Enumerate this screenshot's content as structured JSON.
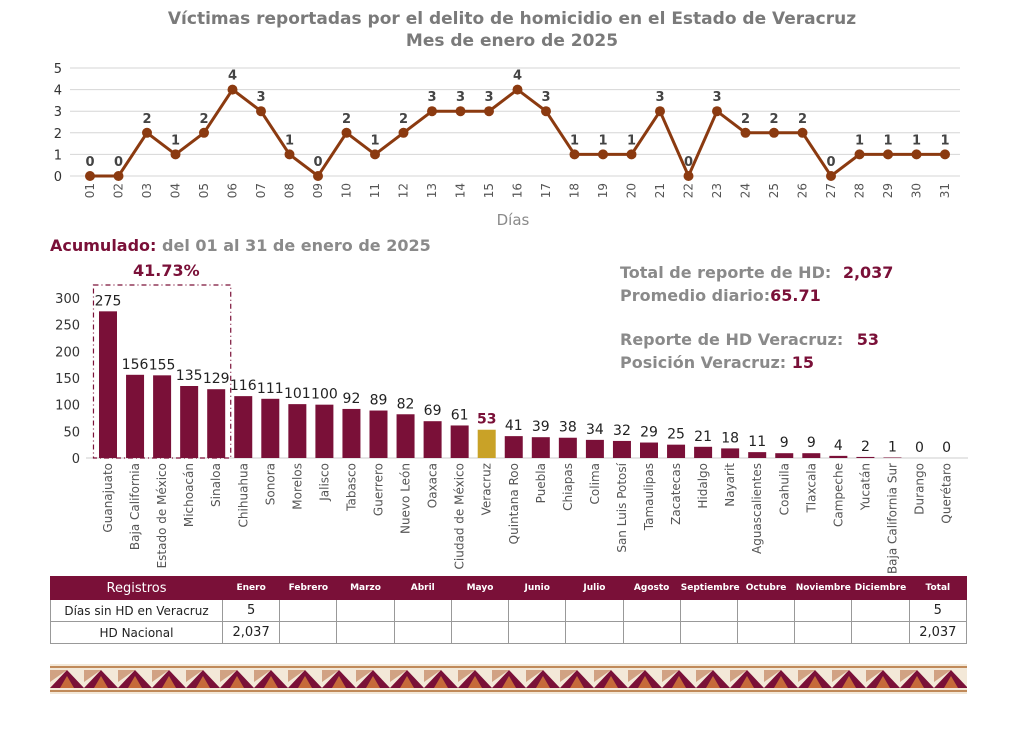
{
  "title": {
    "line1": "Víctimas reportadas por el delito de homicidio en el Estado de Veracruz",
    "line2": "Mes de enero de 2025"
  },
  "accumulated": {
    "label": "Acumulado:",
    "range": "del 01 al 31 de enero de 2025",
    "top5_pct": "41.73%"
  },
  "stats": {
    "total_label": "Total de reporte de HD:",
    "total_value": "2,037",
    "avg_label": "Promedio diario:",
    "avg_value": "65.71",
    "ver_label": "Reporte de HD Veracruz:",
    "ver_value": "53",
    "pos_label": "Posición Veracruz:",
    "pos_value": "15"
  },
  "colors": {
    "line": "#8b3a10",
    "bar": "#7a1038",
    "highlight_bar": "#c9a227",
    "highlight_label": "#7a1038",
    "grid": "#d6d6d6",
    "box": "#7a1038"
  },
  "chart_data": [
    {
      "type": "line",
      "xlabel": "Días",
      "ylim": [
        0,
        5
      ],
      "yticks": [
        0,
        1,
        2,
        3,
        4,
        5
      ],
      "x": [
        "01",
        "02",
        "03",
        "04",
        "05",
        "06",
        "07",
        "08",
        "09",
        "10",
        "11",
        "12",
        "13",
        "14",
        "15",
        "16",
        "17",
        "18",
        "19",
        "20",
        "21",
        "22",
        "23",
        "24",
        "25",
        "26",
        "27",
        "28",
        "29",
        "30",
        "31"
      ],
      "values": [
        0,
        0,
        2,
        1,
        2,
        4,
        3,
        1,
        0,
        2,
        1,
        2,
        3,
        3,
        3,
        4,
        3,
        1,
        1,
        1,
        3,
        0,
        3,
        2,
        2,
        2,
        0,
        1,
        1,
        1,
        1
      ],
      "grid": true
    },
    {
      "type": "bar",
      "ylim": [
        0,
        300
      ],
      "yticks": [
        0,
        50,
        100,
        150,
        200,
        250,
        300
      ],
      "categories": [
        "Guanajuato",
        "Baja California",
        "Estado de México",
        "Michoacán",
        "Sinaloa",
        "Chihuahua",
        "Sonora",
        "Morelos",
        "Jalisco",
        "Tabasco",
        "Guerrero",
        "Nuevo León",
        "Oaxaca",
        "Ciudad de México",
        "Veracruz",
        "Quintana Roo",
        "Puebla",
        "Chiapas",
        "Colima",
        "San Luis Potosí",
        "Tamaulipas",
        "Zacatecas",
        "Hidalgo",
        "Nayarit",
        "Aguascalientes",
        "Coahuila",
        "Tlaxcala",
        "Campeche",
        "Yucatán",
        "Baja California Sur",
        "Durango",
        "Querétaro"
      ],
      "values": [
        275,
        156,
        155,
        135,
        129,
        116,
        111,
        101,
        100,
        92,
        89,
        82,
        69,
        61,
        53,
        41,
        39,
        38,
        34,
        32,
        29,
        25,
        21,
        18,
        11,
        9,
        9,
        4,
        2,
        1,
        0,
        0
      ],
      "highlight": "Veracruz",
      "boxed_top": 5
    }
  ],
  "table": {
    "headers": [
      "Registros",
      "Enero",
      "Febrero",
      "Marzo",
      "Abril",
      "Mayo",
      "Junio",
      "Julio",
      "Agosto",
      "Septiembre",
      "Octubre",
      "Noviembre",
      "Diciembre",
      "Total"
    ],
    "rows": [
      [
        "Días sin HD en Veracruz",
        "5",
        "",
        "",
        "",
        "",
        "",
        "",
        "",
        "",
        "",
        "",
        "",
        "5"
      ],
      [
        "HD Nacional",
        "2,037",
        "",
        "",
        "",
        "",
        "",
        "",
        "",
        "",
        "",
        "",
        "",
        "2,037"
      ]
    ]
  }
}
